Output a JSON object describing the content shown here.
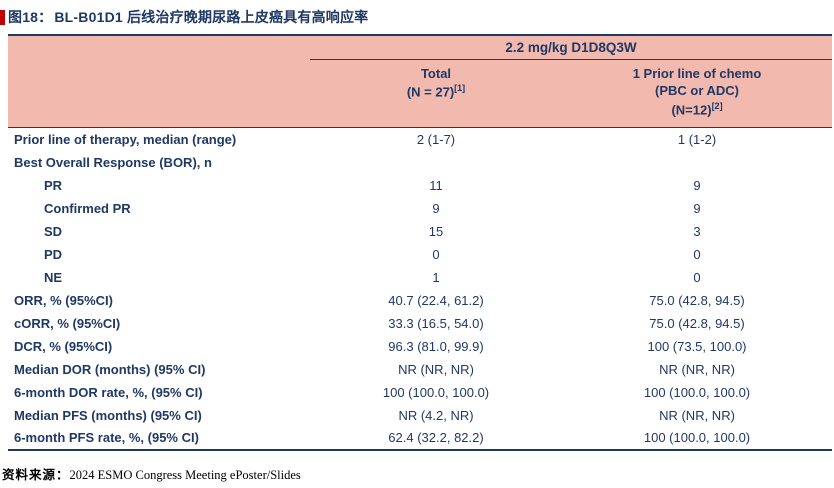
{
  "title": {
    "label": "图18：",
    "text": "BL-B01D1 后线治疗晚期尿路上皮癌具有高响应率"
  },
  "table": {
    "group_header": "2.2 mg/kg D1D8Q3W",
    "columns": [
      {
        "line1": "Total",
        "line2": "(N = 27)",
        "sup": "[1]"
      },
      {
        "line1": "1 Prior line of chemo",
        "line2": "(PBC or ADC)",
        "line3": "(N=12)",
        "sup": "[2]"
      }
    ],
    "rows": [
      {
        "label": "Prior line of therapy, median (range)",
        "indent": false,
        "v1": "2 (1-7)",
        "v2": "1 (1-2)"
      },
      {
        "label": "Best Overall Response (BOR), n",
        "indent": false,
        "v1": "",
        "v2": ""
      },
      {
        "label": "PR",
        "indent": true,
        "v1": "11",
        "v2": "9"
      },
      {
        "label": "Confirmed PR",
        "indent": true,
        "v1": "9",
        "v2": "9"
      },
      {
        "label": "SD",
        "indent": true,
        "v1": "15",
        "v2": "3"
      },
      {
        "label": "PD",
        "indent": true,
        "v1": "0",
        "v2": "0"
      },
      {
        "label": "NE",
        "indent": true,
        "v1": "1",
        "v2": "0"
      },
      {
        "label": "ORR, % (95%CI)",
        "indent": false,
        "v1": "40.7 (22.4, 61.2)",
        "v2": "75.0 (42.8, 94.5)"
      },
      {
        "label": "cORR, % (95%CI)",
        "indent": false,
        "v1": "33.3 (16.5, 54.0)",
        "v2": "75.0 (42.8, 94.5)"
      },
      {
        "label": "DCR, % (95%CI)",
        "indent": false,
        "v1": "96.3 (81.0, 99.9)",
        "v2": "100 (73.5, 100.0)"
      },
      {
        "label": "Median DOR (months) (95% CI)",
        "indent": false,
        "v1": "NR (NR, NR)",
        "v2": "NR (NR, NR)"
      },
      {
        "label": "6-month DOR rate, %, (95% CI)",
        "indent": false,
        "v1": "100 (100.0, 100.0)",
        "v2": "100 (100.0, 100.0)"
      },
      {
        "label": "Median PFS (months) (95% CI)",
        "indent": false,
        "v1": "NR (4.2, NR)",
        "v2": "NR (NR, NR)"
      },
      {
        "label": "6-month PFS rate, %, (95% CI)",
        "indent": false,
        "v1": "62.4 (32.2, 82.2)",
        "v2": "100 (100.0, 100.0)"
      }
    ]
  },
  "source": {
    "label": "资料来源：",
    "text": "2024 ESMO Congress Meeting ePoster/Slides"
  },
  "colors": {
    "navy": "#1F3864",
    "header_pink": "#F2B9AE",
    "accent_red": "#C00000"
  }
}
